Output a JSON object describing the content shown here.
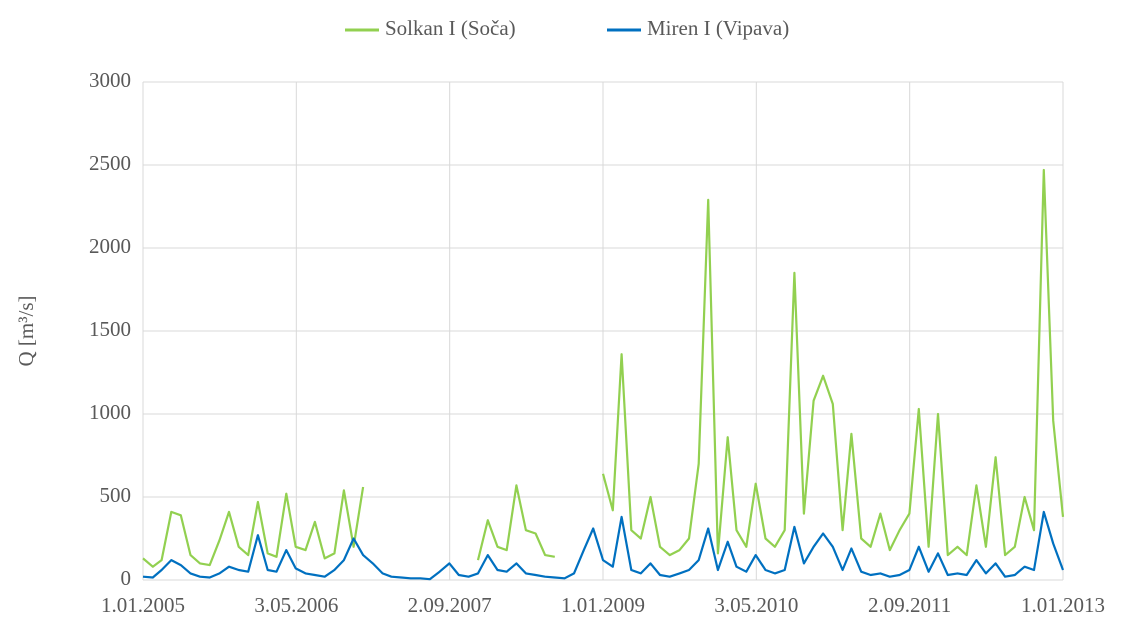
{
  "chart_data": {
    "type": "line",
    "y_label": "Q [m³/s]",
    "x": [
      "2005-01-01",
      "2005-02-01",
      "2005-03-01",
      "2005-04-01",
      "2005-05-01",
      "2005-06-01",
      "2005-07-01",
      "2005-08-01",
      "2005-09-01",
      "2005-10-01",
      "2005-11-01",
      "2005-12-01",
      "2006-01-01",
      "2006-02-01",
      "2006-03-01",
      "2006-04-01",
      "2006-05-01",
      "2006-06-01",
      "2006-07-01",
      "2006-08-01",
      "2006-09-01",
      "2006-10-01",
      "2006-11-01",
      "2006-12-01",
      "2007-01-01",
      "2007-02-01",
      "2007-03-01",
      "2007-04-01",
      "2007-05-01",
      "2007-06-01",
      "2007-07-01",
      "2007-08-01",
      "2007-09-01",
      "2007-10-01",
      "2007-11-01",
      "2007-12-01",
      "2008-01-01",
      "2008-02-01",
      "2008-03-01",
      "2008-04-01",
      "2008-05-01",
      "2008-06-01",
      "2008-07-01",
      "2008-08-01",
      "2008-09-01",
      "2008-10-01",
      "2008-11-01",
      "2008-12-01",
      "2009-01-01",
      "2009-02-01",
      "2009-03-01",
      "2009-04-01",
      "2009-05-01",
      "2009-06-01",
      "2009-07-01",
      "2009-08-01",
      "2009-09-01",
      "2009-10-01",
      "2009-11-01",
      "2009-12-01",
      "2010-01-01",
      "2010-02-01",
      "2010-03-01",
      "2010-04-01",
      "2010-05-01",
      "2010-06-01",
      "2010-07-01",
      "2010-08-01",
      "2010-09-01",
      "2010-10-01",
      "2010-11-01",
      "2010-12-01",
      "2011-01-01",
      "2011-02-01",
      "2011-03-01",
      "2011-04-01",
      "2011-05-01",
      "2011-06-01",
      "2011-07-01",
      "2011-08-01",
      "2011-09-01",
      "2011-10-01",
      "2011-11-01",
      "2011-12-01",
      "2012-01-01",
      "2012-02-01",
      "2012-03-01",
      "2012-04-01",
      "2012-05-01",
      "2012-06-01",
      "2012-07-01",
      "2012-08-01",
      "2012-09-01",
      "2012-10-01",
      "2012-11-01",
      "2012-12-01",
      "2013-01-01"
    ],
    "series": [
      {
        "name": "Solkan I (Soča)",
        "color": "#92d050",
        "values": [
          130,
          80,
          120,
          410,
          390,
          150,
          100,
          90,
          240,
          410,
          200,
          150,
          470,
          160,
          140,
          520,
          200,
          180,
          350,
          130,
          160,
          540,
          200,
          560,
          null,
          null,
          null,
          null,
          null,
          null,
          null,
          null,
          null,
          null,
          null,
          120,
          360,
          200,
          180,
          570,
          300,
          280,
          150,
          140,
          null,
          null,
          null,
          null,
          640,
          420,
          1360,
          300,
          250,
          500,
          200,
          150,
          180,
          250,
          700,
          2290,
          160,
          860,
          300,
          200,
          580,
          250,
          200,
          300,
          1850,
          400,
          1080,
          1230,
          1060,
          300,
          880,
          250,
          200,
          400,
          180,
          300,
          400,
          1030,
          200,
          1000,
          150,
          200,
          150,
          570,
          200,
          740,
          150,
          200,
          500,
          300,
          2470,
          960,
          380
        ]
      },
      {
        "name": "Miren I (Vipava)",
        "color": "#0070c0",
        "values": [
          20,
          15,
          60,
          120,
          90,
          40,
          20,
          15,
          40,
          80,
          60,
          50,
          270,
          60,
          50,
          180,
          70,
          40,
          30,
          20,
          60,
          120,
          250,
          150,
          100,
          40,
          20,
          15,
          10,
          10,
          5,
          50,
          100,
          30,
          20,
          40,
          150,
          60,
          50,
          100,
          40,
          30,
          20,
          15,
          10,
          40,
          180,
          310,
          120,
          80,
          380,
          60,
          40,
          100,
          30,
          20,
          40,
          60,
          120,
          310,
          60,
          230,
          80,
          50,
          150,
          60,
          40,
          60,
          320,
          100,
          200,
          280,
          200,
          60,
          190,
          50,
          30,
          40,
          20,
          30,
          60,
          200,
          50,
          160,
          30,
          40,
          30,
          120,
          40,
          100,
          20,
          30,
          80,
          60,
          410,
          220,
          60
        ]
      }
    ],
    "xlim": [
      "2005-01-01",
      "2013-01-01"
    ],
    "xticks": [
      {
        "value": "2005-01-01",
        "label": "1.01.2005"
      },
      {
        "value": "2006-05-03",
        "label": "3.05.2006"
      },
      {
        "value": "2007-09-02",
        "label": "2.09.2007"
      },
      {
        "value": "2009-01-01",
        "label": "1.01.2009"
      },
      {
        "value": "2010-05-03",
        "label": "3.05.2010"
      },
      {
        "value": "2011-09-02",
        "label": "2.09.2011"
      },
      {
        "value": "2013-01-01",
        "label": "1.01.2013"
      }
    ],
    "ylim": [
      0,
      3000
    ],
    "yticks": [
      0,
      500,
      1000,
      1500,
      2000,
      2500,
      3000
    ],
    "grid": true,
    "legend": "top"
  }
}
